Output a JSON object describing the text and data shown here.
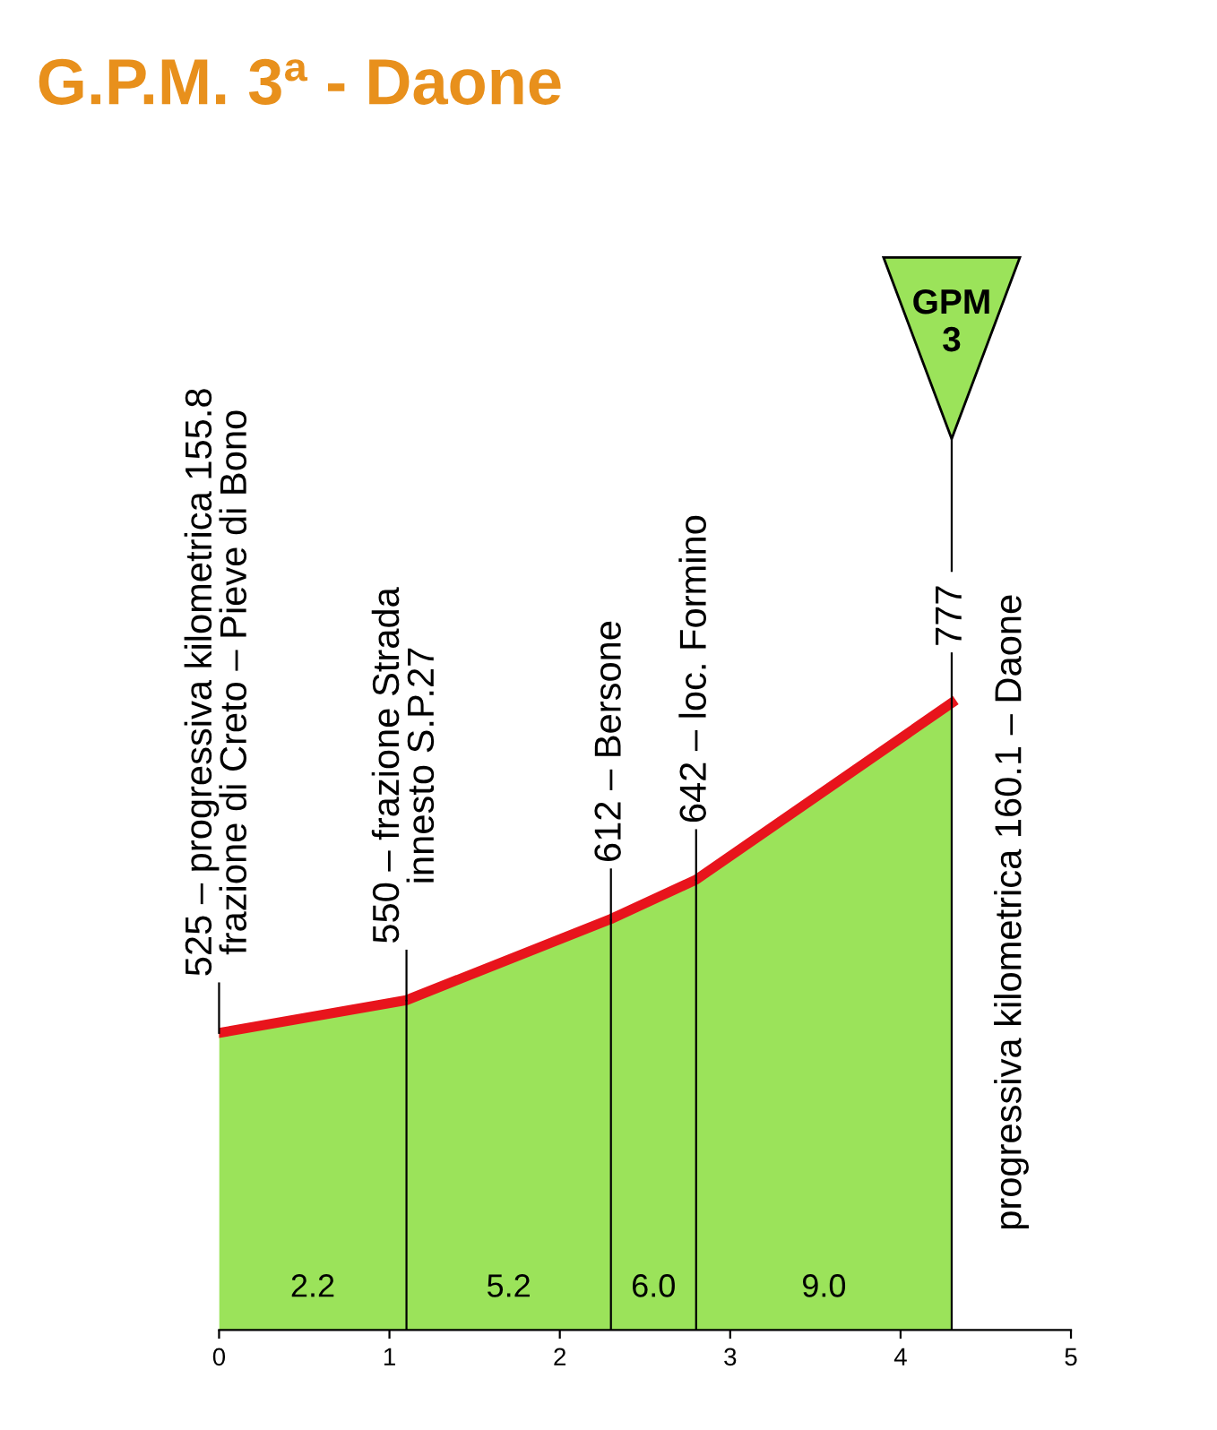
{
  "chart_data": {
    "type": "area",
    "title": "G.P.M. 3ª - Daone",
    "x": [
      0,
      1.1,
      2.3,
      2.8,
      4.3
    ],
    "series": [
      {
        "color": "#9be35a",
        "values": [
          525,
          550,
          612,
          642,
          777
        ],
        "value_labels": [
          "525 – progressiva kilometrica 155.8\nfrazione di Creto – Pieve di Bono",
          "550 – frazione Strada\ninnesto S.P.27",
          "612 – Bersone",
          "642 – loc. Formino",
          "777"
        ]
      }
    ],
    "ref_lines": [
      {
        "axis": "x",
        "value": 1.1,
        "color": "#000000"
      },
      {
        "axis": "x",
        "value": 2.3,
        "color": "#000000"
      },
      {
        "axis": "x",
        "value": 2.8,
        "color": "#000000"
      },
      {
        "axis": "x",
        "value": 4.3,
        "color": "#000000"
      }
    ],
    "xlim": [
      0,
      5
    ],
    "xticks": [
      0,
      1,
      2,
      3,
      4,
      5
    ],
    "annotations": [
      "2.2",
      "5.2",
      "6.0",
      "9.0",
      "GPM\n3",
      "progressiva kilometrica 160.1 – Daone"
    ],
    "grid": false,
    "legend": false
  }
}
